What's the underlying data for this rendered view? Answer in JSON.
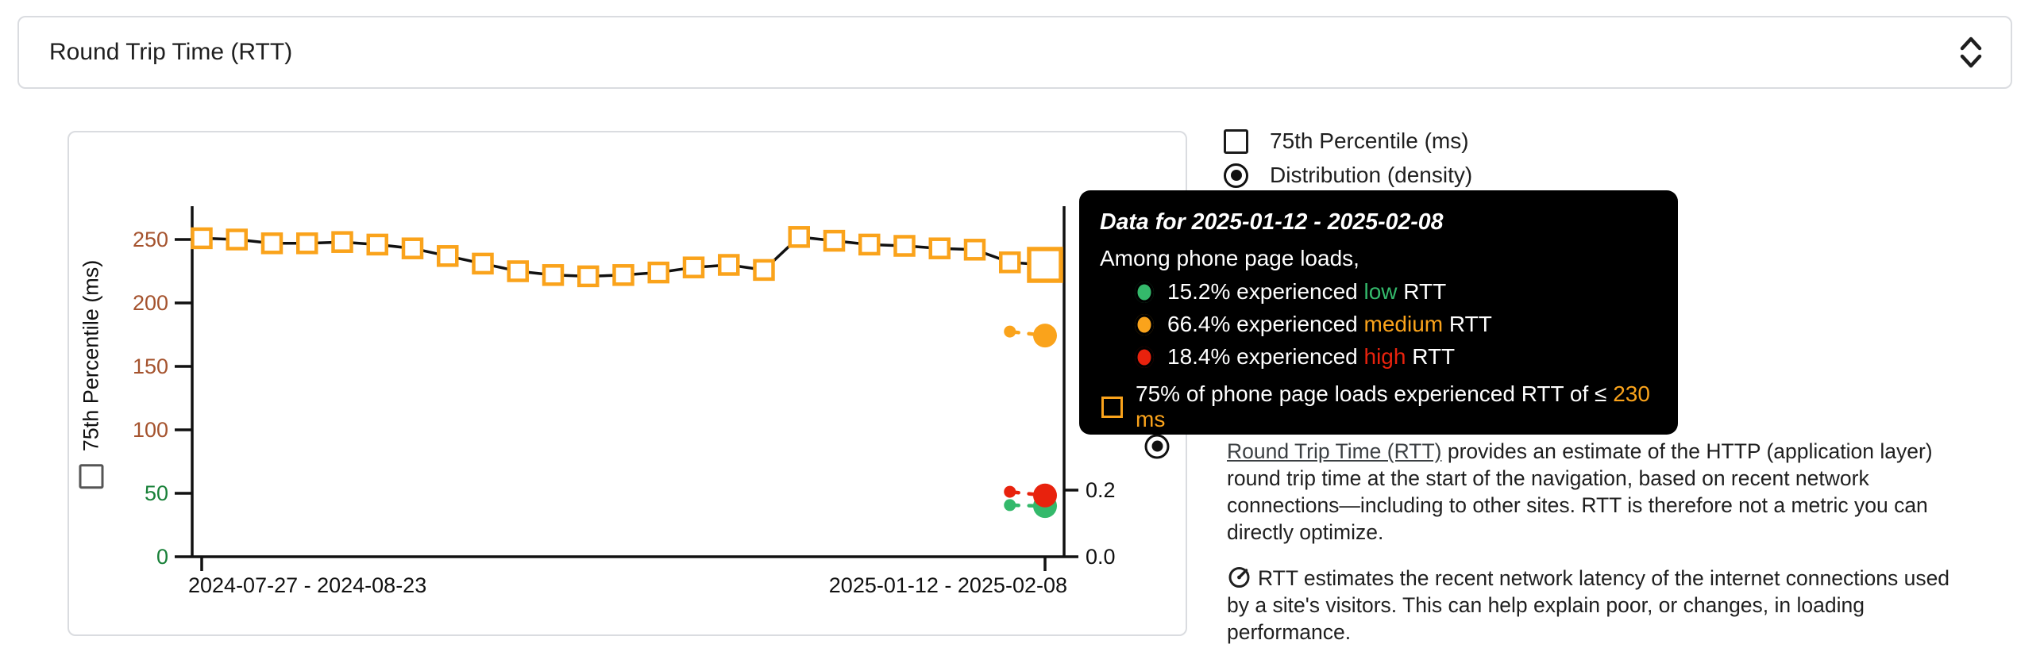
{
  "metric_select": {
    "value": "Round Trip Time (RTT)"
  },
  "legend": {
    "items": [
      {
        "type": "checkbox",
        "checked": false,
        "label": "75th Percentile (ms)"
      },
      {
        "type": "radio",
        "checked": true,
        "label": "Distribution (density)"
      }
    ]
  },
  "tooltip": {
    "title": "Data for 2025-01-12 - 2025-02-08",
    "subtitle": "Among phone page loads,",
    "rows": [
      {
        "marker": "circle",
        "color": "#34b96b",
        "pct": "15.2%",
        "mid": " experienced ",
        "level": "low",
        "suffix": " RTT"
      },
      {
        "marker": "circle",
        "color": "#faa31b",
        "pct": "66.4%",
        "mid": " experienced ",
        "level": "medium",
        "suffix": " RTT"
      },
      {
        "marker": "circle",
        "color": "#e8220d",
        "pct": "18.4%",
        "mid": " experienced ",
        "level": "high",
        "suffix": " RTT"
      }
    ],
    "threshold_row": {
      "marker": "square",
      "color": "#faa31b",
      "text": "75% of phone page loads experienced RTT of ≤ ",
      "value": "230 ms"
    }
  },
  "chart_data": {
    "type": "line",
    "x_tick_labels": [
      "2024-07-27 - 2024-08-23",
      "2025-01-12 - 2025-02-08"
    ],
    "left_axis": {
      "label": "75th Percentile (ms)",
      "ticks": [
        0,
        50,
        100,
        150,
        200,
        250
      ],
      "range": [
        0,
        276
      ],
      "good_max": 50,
      "good_color": "#188038",
      "warn_color": "#a5532e"
    },
    "right_axis": {
      "label": "Distribution (density)",
      "ticks": [
        0.0,
        0.2
      ],
      "range": [
        0,
        1.05
      ]
    },
    "series": [
      {
        "name": "75th Percentile (ms)",
        "color": "#faa31b",
        "marker": "square",
        "values": [
          251,
          250,
          247,
          247,
          248,
          246,
          243,
          237,
          231,
          225,
          222,
          221,
          222,
          224,
          228,
          230,
          226,
          252,
          249,
          246,
          245,
          243,
          242,
          232,
          230
        ]
      }
    ],
    "density_series": [
      {
        "name": "low",
        "color": "#34b96b",
        "last_two_values": [
          0.155,
          0.152
        ]
      },
      {
        "name": "high",
        "color": "#e8220d",
        "last_two_values": [
          0.195,
          0.184
        ]
      },
      {
        "name": "medium",
        "color": "#faa31b",
        "last_two_values": [
          0.676,
          0.664
        ]
      }
    ],
    "hovered_point": {
      "x_label": "2025-01-12 - 2025-02-08",
      "value_ms": 230
    }
  },
  "description": {
    "p1_link": "Round Trip Time (RTT)",
    "p1_rest": " provides an estimate of the HTTP (application layer) round trip time at the start of the navigation, based on recent network connections—including to other sites. RTT is therefore not a metric you can directly optimize.",
    "p2": "RTT estimates the recent network latency of the internet connections used by a site's visitors. This can help explain poor, or changes, in loading performance."
  },
  "colors": {
    "accent_orange": "#faa31b",
    "green": "#34b96b",
    "red": "#e8220d",
    "tick_green": "#188038",
    "tick_brown": "#a5532e",
    "card_border": "#dadce0",
    "tooltip_bg": "#000000"
  }
}
